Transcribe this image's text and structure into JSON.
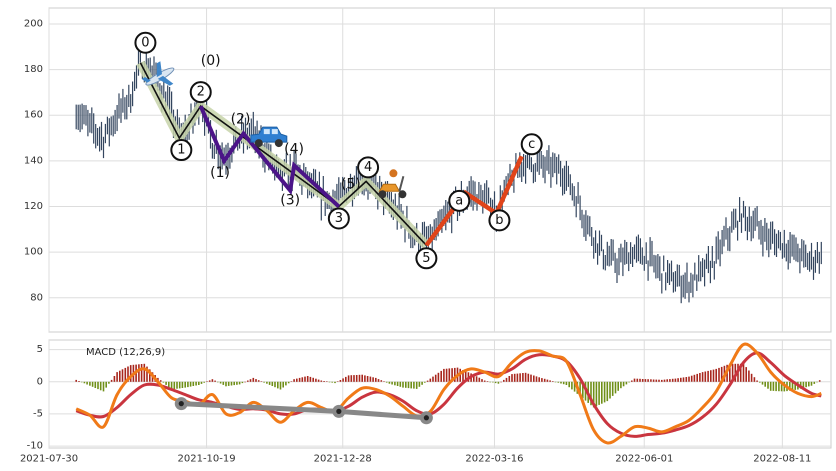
{
  "chart_data": {
    "type": "line",
    "title": "",
    "xlabel": "",
    "ylabel": "",
    "x_range": [
      "2021-07-30",
      "2022-09-05"
    ],
    "x_ticks": [
      "2021-07-30",
      "2021-10-19",
      "2021-12-28",
      "2022-03-16",
      "2022-06-01",
      "2022-08-11"
    ],
    "grid": true,
    "colors": {
      "price": "#34465f",
      "primary_wave": "#111111",
      "wave_band": "#c7d4a9",
      "sub_wave": "#4b1488",
      "correction": "#e0441a",
      "macd_line": "#f07a18",
      "signal_line": "#c9353f",
      "hist_positive": "#a8261d",
      "hist_negative": "#6f8f18",
      "divergence": "#888888"
    },
    "price_panel": {
      "ylim": [
        65,
        207
      ],
      "y_ticks": [
        80,
        100,
        120,
        140,
        160,
        180,
        200
      ],
      "price_points": [
        {
          "x": "2021-08-13",
          "y": 162
        },
        {
          "x": "2021-08-20",
          "y": 155
        },
        {
          "x": "2021-08-27",
          "y": 150
        },
        {
          "x": "2021-09-03",
          "y": 160
        },
        {
          "x": "2021-09-10",
          "y": 168
        },
        {
          "x": "2021-09-15",
          "y": 184
        },
        {
          "x": "2021-09-22",
          "y": 178
        },
        {
          "x": "2021-09-29",
          "y": 165
        },
        {
          "x": "2021-10-06",
          "y": 150
        },
        {
          "x": "2021-10-12",
          "y": 158
        },
        {
          "x": "2021-10-16",
          "y": 167
        },
        {
          "x": "2021-10-22",
          "y": 148
        },
        {
          "x": "2021-10-28",
          "y": 142
        },
        {
          "x": "2021-11-05",
          "y": 150
        },
        {
          "x": "2021-11-12",
          "y": 152
        },
        {
          "x": "2021-11-19",
          "y": 143
        },
        {
          "x": "2021-11-26",
          "y": 133
        },
        {
          "x": "2021-12-03",
          "y": 136
        },
        {
          "x": "2021-12-10",
          "y": 130
        },
        {
          "x": "2021-12-17",
          "y": 124
        },
        {
          "x": "2021-12-24",
          "y": 121
        },
        {
          "x": "2021-12-31",
          "y": 129
        },
        {
          "x": "2022-01-07",
          "y": 134
        },
        {
          "x": "2022-01-14",
          "y": 128
        },
        {
          "x": "2022-01-21",
          "y": 121
        },
        {
          "x": "2022-01-28",
          "y": 114
        },
        {
          "x": "2022-02-04",
          "y": 106
        },
        {
          "x": "2022-02-10",
          "y": 104
        },
        {
          "x": "2022-02-17",
          "y": 112
        },
        {
          "x": "2022-02-24",
          "y": 120
        },
        {
          "x": "2022-03-03",
          "y": 126
        },
        {
          "x": "2022-03-10",
          "y": 124
        },
        {
          "x": "2022-03-17",
          "y": 118
        },
        {
          "x": "2022-03-24",
          "y": 130
        },
        {
          "x": "2022-03-31",
          "y": 140
        },
        {
          "x": "2022-04-07",
          "y": 138
        },
        {
          "x": "2022-04-14",
          "y": 137
        },
        {
          "x": "2022-04-21",
          "y": 135
        },
        {
          "x": "2022-04-28",
          "y": 122
        },
        {
          "x": "2022-05-05",
          "y": 108
        },
        {
          "x": "2022-05-12",
          "y": 98
        },
        {
          "x": "2022-05-19",
          "y": 95
        },
        {
          "x": "2022-05-26",
          "y": 100
        },
        {
          "x": "2022-06-02",
          "y": 98
        },
        {
          "x": "2022-06-09",
          "y": 92
        },
        {
          "x": "2022-06-16",
          "y": 88
        },
        {
          "x": "2022-06-23",
          "y": 86
        },
        {
          "x": "2022-06-30",
          "y": 90
        },
        {
          "x": "2022-07-07",
          "y": 96
        },
        {
          "x": "2022-07-14",
          "y": 108
        },
        {
          "x": "2022-07-21",
          "y": 116
        },
        {
          "x": "2022-07-28",
          "y": 112
        },
        {
          "x": "2022-08-04",
          "y": 106
        },
        {
          "x": "2022-08-11",
          "y": 104
        },
        {
          "x": "2022-08-18",
          "y": 100
        },
        {
          "x": "2022-08-25",
          "y": 96
        },
        {
          "x": "2022-08-31",
          "y": 99
        }
      ],
      "primary_wave": [
        {
          "label": "0",
          "x": "2021-09-15",
          "y": 183
        },
        {
          "label": "1",
          "x": "2021-10-05",
          "y": 150
        },
        {
          "label": "2",
          "x": "2021-10-16",
          "y": 164
        },
        {
          "label": "3",
          "x": "2021-12-26",
          "y": 120
        },
        {
          "label": "4",
          "x": "2022-01-09",
          "y": 131
        },
        {
          "label": "5",
          "x": "2022-02-09",
          "y": 103
        }
      ],
      "sub_wave": [
        {
          "label": "(0)",
          "x": "2021-10-16",
          "y": 164
        },
        {
          "label": "(1)",
          "x": "2021-10-28",
          "y": 140
        },
        {
          "label": "(2)",
          "x": "2021-11-07",
          "y": 152
        },
        {
          "label": "(3)",
          "x": "2021-12-01",
          "y": 127
        },
        {
          "label": "(4)",
          "x": "2021-12-03",
          "y": 138
        },
        {
          "label": "(5)",
          "x": "2021-12-26",
          "y": 120
        }
      ],
      "correction_wave": [
        {
          "label": "",
          "x": "2022-02-09",
          "y": 103
        },
        {
          "label": "a",
          "x": "2022-03-01",
          "y": 126
        },
        {
          "label": "b",
          "x": "2022-03-17",
          "y": 117
        },
        {
          "label": "c",
          "x": "2022-03-30",
          "y": 142
        }
      ]
    },
    "macd_panel": {
      "label": "MACD (12,26,9)",
      "ylim": [
        -10.3,
        6.5
      ],
      "y_ticks": [
        5,
        0,
        -5,
        -10
      ],
      "macd_line": [
        {
          "x": "2021-08-13",
          "y": -4.2
        },
        {
          "x": "2021-08-20",
          "y": -5.2
        },
        {
          "x": "2021-08-27",
          "y": -7.0
        },
        {
          "x": "2021-09-03",
          "y": -2.0
        },
        {
          "x": "2021-09-10",
          "y": 0.8
        },
        {
          "x": "2021-09-17",
          "y": 2.0
        },
        {
          "x": "2021-09-24",
          "y": 0.0
        },
        {
          "x": "2021-10-01",
          "y": -2.5
        },
        {
          "x": "2021-10-08",
          "y": -3.0
        },
        {
          "x": "2021-10-15",
          "y": -3.6
        },
        {
          "x": "2021-10-22",
          "y": -2.0
        },
        {
          "x": "2021-10-29",
          "y": -5.0
        },
        {
          "x": "2021-11-05",
          "y": -4.8
        },
        {
          "x": "2021-11-12",
          "y": -3.2
        },
        {
          "x": "2021-11-19",
          "y": -4.5
        },
        {
          "x": "2021-11-26",
          "y": -6.3
        },
        {
          "x": "2021-12-03",
          "y": -4.5
        },
        {
          "x": "2021-12-10",
          "y": -3.2
        },
        {
          "x": "2021-12-17",
          "y": -4.0
        },
        {
          "x": "2021-12-24",
          "y": -4.6
        },
        {
          "x": "2021-12-31",
          "y": -2.5
        },
        {
          "x": "2022-01-07",
          "y": -1.0
        },
        {
          "x": "2022-01-14",
          "y": -1.2
        },
        {
          "x": "2022-01-21",
          "y": -2.2
        },
        {
          "x": "2022-01-28",
          "y": -3.8
        },
        {
          "x": "2022-02-04",
          "y": -5.3
        },
        {
          "x": "2022-02-11",
          "y": -4.6
        },
        {
          "x": "2022-02-18",
          "y": -1.2
        },
        {
          "x": "2022-02-25",
          "y": 1.0
        },
        {
          "x": "2022-03-04",
          "y": 2.0
        },
        {
          "x": "2022-03-11",
          "y": 1.5
        },
        {
          "x": "2022-03-18",
          "y": 0.8
        },
        {
          "x": "2022-03-25",
          "y": 3.0
        },
        {
          "x": "2022-04-01",
          "y": 4.6
        },
        {
          "x": "2022-04-08",
          "y": 4.8
        },
        {
          "x": "2022-04-15",
          "y": 4.0
        },
        {
          "x": "2022-04-22",
          "y": 3.2
        },
        {
          "x": "2022-04-29",
          "y": -2.0
        },
        {
          "x": "2022-05-06",
          "y": -7.5
        },
        {
          "x": "2022-05-13",
          "y": -9.5
        },
        {
          "x": "2022-05-20",
          "y": -8.5
        },
        {
          "x": "2022-05-27",
          "y": -7.0
        },
        {
          "x": "2022-06-03",
          "y": -7.2
        },
        {
          "x": "2022-06-10",
          "y": -7.8
        },
        {
          "x": "2022-06-17",
          "y": -7.0
        },
        {
          "x": "2022-06-24",
          "y": -6.0
        },
        {
          "x": "2022-07-01",
          "y": -4.0
        },
        {
          "x": "2022-07-08",
          "y": -1.5
        },
        {
          "x": "2022-07-15",
          "y": 2.5
        },
        {
          "x": "2022-07-22",
          "y": 5.8
        },
        {
          "x": "2022-07-29",
          "y": 4.5
        },
        {
          "x": "2022-08-05",
          "y": 1.5
        },
        {
          "x": "2022-08-12",
          "y": -0.5
        },
        {
          "x": "2022-08-19",
          "y": -1.8
        },
        {
          "x": "2022-08-26",
          "y": -2.3
        },
        {
          "x": "2022-08-31",
          "y": -1.8
        }
      ],
      "signal_line": [
        {
          "x": "2021-08-13",
          "y": -4.5
        },
        {
          "x": "2021-08-20",
          "y": -5.2
        },
        {
          "x": "2021-08-27",
          "y": -5.4
        },
        {
          "x": "2021-09-03",
          "y": -4.0
        },
        {
          "x": "2021-09-10",
          "y": -2.0
        },
        {
          "x": "2021-09-17",
          "y": -0.5
        },
        {
          "x": "2021-09-24",
          "y": -0.5
        },
        {
          "x": "2021-10-01",
          "y": -1.2
        },
        {
          "x": "2021-10-08",
          "y": -2.0
        },
        {
          "x": "2021-10-15",
          "y": -2.8
        },
        {
          "x": "2021-10-22",
          "y": -3.2
        },
        {
          "x": "2021-10-29",
          "y": -3.8
        },
        {
          "x": "2021-11-05",
          "y": -4.3
        },
        {
          "x": "2021-11-12",
          "y": -4.2
        },
        {
          "x": "2021-11-19",
          "y": -4.4
        },
        {
          "x": "2021-11-26",
          "y": -5.0
        },
        {
          "x": "2021-12-03",
          "y": -5.0
        },
        {
          "x": "2021-12-10",
          "y": -4.3
        },
        {
          "x": "2021-12-17",
          "y": -4.3
        },
        {
          "x": "2021-12-24",
          "y": -4.6
        },
        {
          "x": "2021-12-31",
          "y": -3.8
        },
        {
          "x": "2022-01-07",
          "y": -2.4
        },
        {
          "x": "2022-01-14",
          "y": -1.6
        },
        {
          "x": "2022-01-21",
          "y": -2.0
        },
        {
          "x": "2022-01-28",
          "y": -3.0
        },
        {
          "x": "2022-02-04",
          "y": -4.5
        },
        {
          "x": "2022-02-11",
          "y": -5.0
        },
        {
          "x": "2022-02-18",
          "y": -3.5
        },
        {
          "x": "2022-02-25",
          "y": -1.0
        },
        {
          "x": "2022-03-04",
          "y": 0.8
        },
        {
          "x": "2022-03-11",
          "y": 1.5
        },
        {
          "x": "2022-03-18",
          "y": 1.2
        },
        {
          "x": "2022-03-25",
          "y": 2.0
        },
        {
          "x": "2022-04-01",
          "y": 3.5
        },
        {
          "x": "2022-04-08",
          "y": 4.2
        },
        {
          "x": "2022-04-15",
          "y": 4.0
        },
        {
          "x": "2022-04-22",
          "y": 3.2
        },
        {
          "x": "2022-04-29",
          "y": 0.5
        },
        {
          "x": "2022-05-06",
          "y": -3.5
        },
        {
          "x": "2022-05-13",
          "y": -6.5
        },
        {
          "x": "2022-05-20",
          "y": -8.0
        },
        {
          "x": "2022-05-27",
          "y": -8.5
        },
        {
          "x": "2022-06-03",
          "y": -8.2
        },
        {
          "x": "2022-06-10",
          "y": -8.0
        },
        {
          "x": "2022-06-17",
          "y": -7.5
        },
        {
          "x": "2022-06-24",
          "y": -6.8
        },
        {
          "x": "2022-07-01",
          "y": -5.5
        },
        {
          "x": "2022-07-08",
          "y": -3.5
        },
        {
          "x": "2022-07-15",
          "y": -0.5
        },
        {
          "x": "2022-07-22",
          "y": 3.0
        },
        {
          "x": "2022-07-29",
          "y": 4.5
        },
        {
          "x": "2022-08-05",
          "y": 3.0
        },
        {
          "x": "2022-08-12",
          "y": 1.0
        },
        {
          "x": "2022-08-19",
          "y": -0.5
        },
        {
          "x": "2022-08-26",
          "y": -1.8
        },
        {
          "x": "2022-08-31",
          "y": -2.2
        }
      ],
      "histogram": [
        {
          "x": "2021-08-13",
          "y": 0.3
        },
        {
          "x": "2021-08-20",
          "y": -0.6
        },
        {
          "x": "2021-08-27",
          "y": -1.5
        },
        {
          "x": "2021-09-03",
          "y": 1.5
        },
        {
          "x": "2021-09-10",
          "y": 2.6
        },
        {
          "x": "2021-09-17",
          "y": 2.8
        },
        {
          "x": "2021-09-24",
          "y": 0.6
        },
        {
          "x": "2021-10-01",
          "y": -1.2
        },
        {
          "x": "2021-10-08",
          "y": -0.9
        },
        {
          "x": "2021-10-15",
          "y": -0.5
        },
        {
          "x": "2021-10-22",
          "y": 0.4
        },
        {
          "x": "2021-10-29",
          "y": -0.7
        },
        {
          "x": "2021-11-05",
          "y": -0.4
        },
        {
          "x": "2021-11-12",
          "y": 0.6
        },
        {
          "x": "2021-11-19",
          "y": -0.3
        },
        {
          "x": "2021-11-26",
          "y": -1.2
        },
        {
          "x": "2021-12-03",
          "y": 0.4
        },
        {
          "x": "2021-12-10",
          "y": 0.9
        },
        {
          "x": "2021-12-17",
          "y": 0.2
        },
        {
          "x": "2021-12-24",
          "y": -0.2
        },
        {
          "x": "2021-12-31",
          "y": 1.0
        },
        {
          "x": "2022-01-07",
          "y": 1.1
        },
        {
          "x": "2022-01-14",
          "y": 0.6
        },
        {
          "x": "2022-01-21",
          "y": -0.3
        },
        {
          "x": "2022-01-28",
          "y": -0.9
        },
        {
          "x": "2022-02-04",
          "y": -1.1
        },
        {
          "x": "2022-02-11",
          "y": 0.5
        },
        {
          "x": "2022-02-18",
          "y": 2.0
        },
        {
          "x": "2022-02-25",
          "y": 2.2
        },
        {
          "x": "2022-03-04",
          "y": 1.3
        },
        {
          "x": "2022-03-11",
          "y": 0.2
        },
        {
          "x": "2022-03-18",
          "y": -0.3
        },
        {
          "x": "2022-03-25",
          "y": 1.2
        },
        {
          "x": "2022-04-01",
          "y": 1.4
        },
        {
          "x": "2022-04-08",
          "y": 0.7
        },
        {
          "x": "2022-04-15",
          "y": 0.1
        },
        {
          "x": "2022-04-22",
          "y": -0.5
        },
        {
          "x": "2022-04-29",
          "y": -2.2
        },
        {
          "x": "2022-05-06",
          "y": -4.0
        },
        {
          "x": "2022-05-13",
          "y": -3.0
        },
        {
          "x": "2022-05-20",
          "y": -1.0
        },
        {
          "x": "2022-05-27",
          "y": 0.5
        },
        {
          "x": "2022-06-03",
          "y": 0.4
        },
        {
          "x": "2022-06-10",
          "y": 0.3
        },
        {
          "x": "2022-06-17",
          "y": 0.5
        },
        {
          "x": "2022-06-24",
          "y": 0.8
        },
        {
          "x": "2022-07-01",
          "y": 1.5
        },
        {
          "x": "2022-07-08",
          "y": 2.0
        },
        {
          "x": "2022-07-15",
          "y": 2.8
        },
        {
          "x": "2022-07-22",
          "y": 2.8
        },
        {
          "x": "2022-07-29",
          "y": 0.2
        },
        {
          "x": "2022-08-05",
          "y": -1.4
        },
        {
          "x": "2022-08-12",
          "y": -1.5
        },
        {
          "x": "2022-08-19",
          "y": -1.2
        },
        {
          "x": "2022-08-26",
          "y": -0.6
        },
        {
          "x": "2022-08-31",
          "y": 0.4
        }
      ],
      "divergence_points": [
        {
          "x": "2021-10-06",
          "y": -3.4
        },
        {
          "x": "2021-12-26",
          "y": -4.6
        },
        {
          "x": "2022-02-09",
          "y": -5.6
        }
      ]
    },
    "icons": [
      {
        "name": "airplane-icon",
        "x": "2021-09-25",
        "y": 177
      },
      {
        "name": "car-icon",
        "x": "2021-11-20",
        "y": 150
      },
      {
        "name": "scooter-icon",
        "x": "2022-01-22",
        "y": 128
      }
    ]
  }
}
